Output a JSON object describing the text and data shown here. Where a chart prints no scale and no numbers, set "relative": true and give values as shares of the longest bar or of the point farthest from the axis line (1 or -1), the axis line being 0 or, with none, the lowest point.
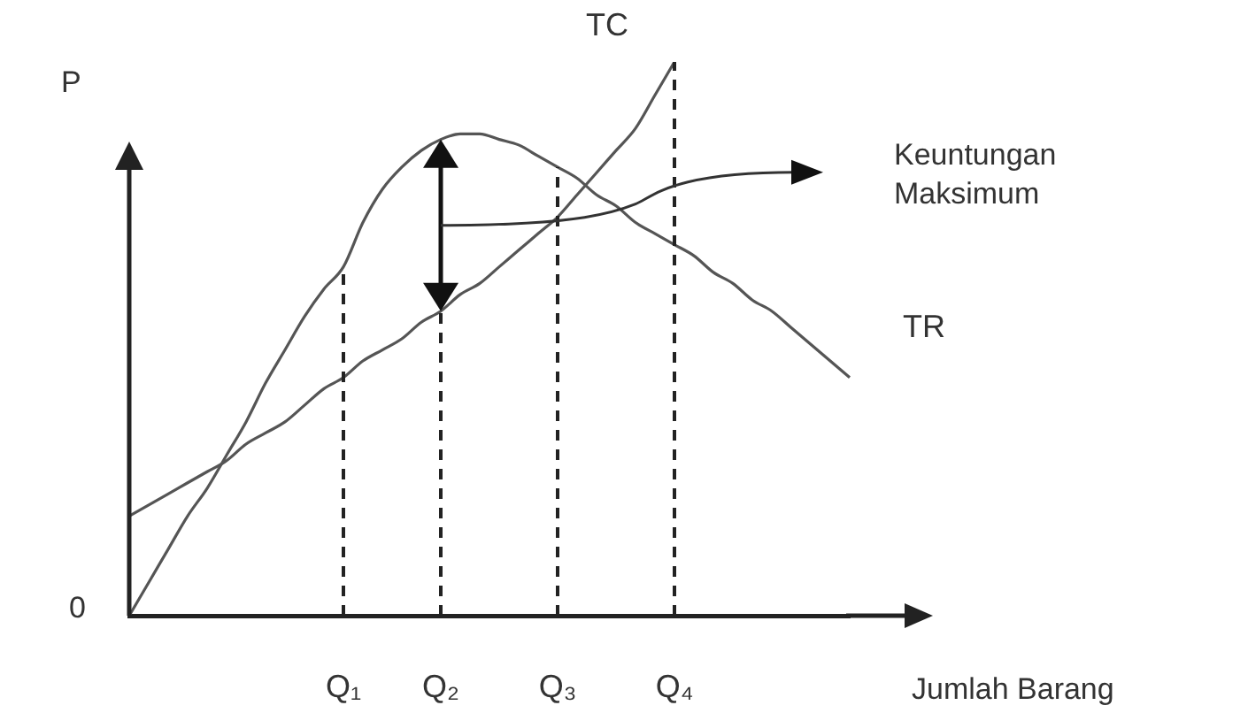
{
  "chart_data": {
    "type": "line",
    "relative": true,
    "xlabel": "Jumlah Barang",
    "ylabel": "P",
    "legend": false,
    "grid": false,
    "marker": "none",
    "categories": [
      null,
      null,
      null,
      null,
      null,
      null,
      null,
      null,
      null,
      null,
      null,
      "Q₁",
      null,
      null,
      null,
      null,
      "Q₂",
      null,
      null,
      null,
      null,
      null,
      "Q₃",
      null,
      null,
      null,
      null,
      null,
      "Q₄",
      null,
      null,
      null,
      null,
      null,
      null,
      null,
      null,
      null
    ],
    "series": [
      {
        "name": "TR",
        "color": "#555555",
        "values": [
          0,
          0.06,
          0.12,
          0.18,
          0.23,
          0.29,
          0.35,
          0.42,
          0.48,
          0.54,
          0.59,
          0.63,
          0.71,
          0.77,
          0.81,
          0.84,
          0.86,
          0.87,
          0.87,
          0.86,
          0.85,
          0.83,
          0.81,
          0.79,
          0.76,
          0.74,
          0.71,
          0.69,
          0.67,
          0.65,
          0.62,
          0.6,
          0.57,
          0.55,
          0.52,
          0.49,
          0.46,
          0.43
        ]
      },
      {
        "name": "TC",
        "color": "#555555",
        "values": [
          0.18,
          0.2,
          0.22,
          0.24,
          0.26,
          0.28,
          0.31,
          0.33,
          0.35,
          0.38,
          0.41,
          0.43,
          0.46,
          0.48,
          0.5,
          0.53,
          0.55,
          0.58,
          0.6,
          0.63,
          0.66,
          0.69,
          0.72,
          0.76,
          0.8,
          0.84,
          0.88,
          0.94,
          1,
          null,
          null,
          null,
          null,
          null,
          null,
          null,
          null,
          null
        ]
      }
    ],
    "ref_lines": [
      {
        "axis": "x",
        "value": "Q₁",
        "line_style": "dashed"
      },
      {
        "axis": "x",
        "value": "Q₂",
        "line_style": "dashed"
      },
      {
        "axis": "x",
        "value": "Q₃",
        "line_style": "dashed"
      },
      {
        "axis": "x",
        "value": "Q₄",
        "line_style": "dashed"
      }
    ],
    "annotations": [
      "0",
      "Keuntungan Maksimum"
    ]
  }
}
